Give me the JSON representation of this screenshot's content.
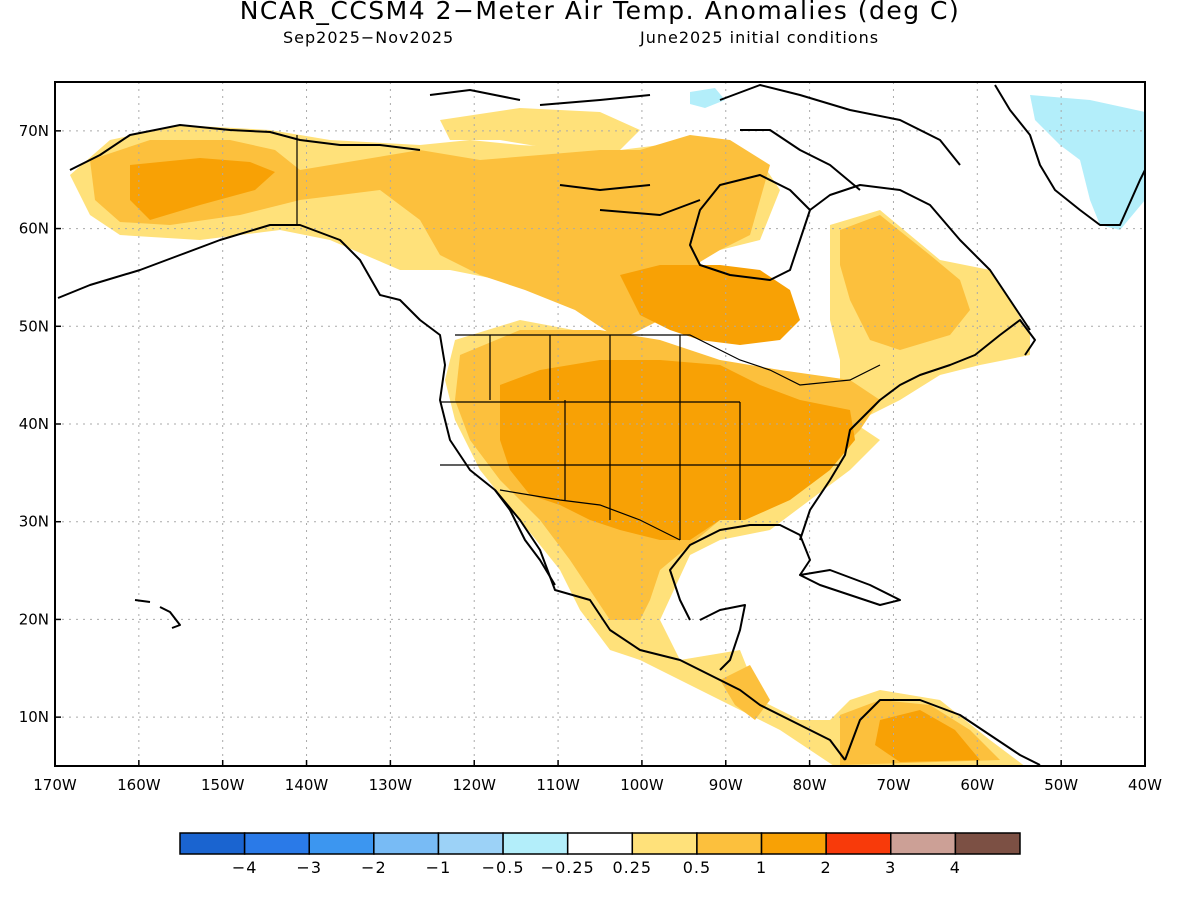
{
  "title": "NCAR_CCSM4 2−Meter Air Temp. Anomalies (deg C)",
  "subtitle_left": "Sep2025−Nov2025",
  "subtitle_right": "June2025 initial conditions",
  "map": {
    "lon_range": [
      -170,
      -40
    ],
    "lat_range": [
      5,
      75
    ],
    "lat_labels": [
      "10N",
      "20N",
      "30N",
      "40N",
      "50N",
      "60N",
      "70N"
    ],
    "lon_labels": [
      "170W",
      "160W",
      "150W",
      "140W",
      "130W",
      "120W",
      "110W",
      "100W",
      "90W",
      "80W",
      "70W",
      "60W",
      "50W",
      "40W"
    ],
    "grid": true
  },
  "legend": {
    "colors": [
      "#1a64d0",
      "#2a7ae8",
      "#3c96f0",
      "#78bbf5",
      "#9cd2f7",
      "#b3eefa",
      "#ffffff",
      "#ffe17a",
      "#fcc03d",
      "#f8a105",
      "#f83a0a",
      "#cca096",
      "#7c5044"
    ],
    "labels": [
      "−4",
      "−3",
      "−2",
      "−1",
      "−0.5",
      "−0.25",
      "0.25",
      "0.5",
      "1",
      "2",
      "3",
      "4"
    ]
  },
  "colors": {
    "weak_warm": "#ffe17a",
    "moderate_warm": "#fcc03d",
    "strong_warm": "#f8a105",
    "cool": "#b3eefa",
    "coast": "#000000"
  }
}
